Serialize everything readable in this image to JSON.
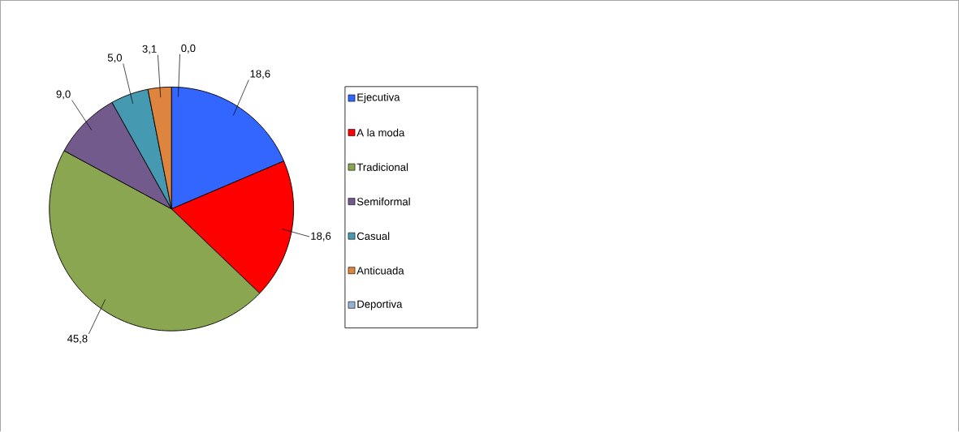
{
  "chart_data": {
    "type": "pie",
    "categories": [
      "Ejecutiva",
      "A la moda",
      "Tradicional",
      "Semiformal",
      "Casual",
      "Anticuada",
      "Deportiva"
    ],
    "values": [
      18.6,
      18.6,
      45.8,
      9.0,
      5.0,
      3.1,
      0.0
    ],
    "value_labels": [
      "18,6",
      "18,6",
      "45,8",
      "9,0",
      "5,0",
      "3,1",
      "0,0"
    ],
    "colors": [
      "#3366ff",
      "#ff0000",
      "#8aa650",
      "#725a8c",
      "#4599b0",
      "#dd843f",
      "#95b3d7"
    ],
    "legend": "right"
  }
}
